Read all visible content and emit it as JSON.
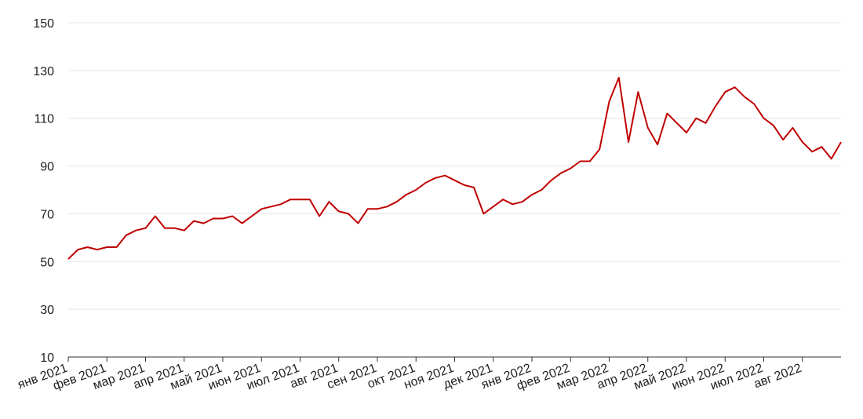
{
  "chart_data": {
    "type": "line",
    "categories": [
      "янв 2021",
      null,
      null,
      null,
      "фев 2021",
      null,
      null,
      null,
      "мар 2021",
      null,
      null,
      null,
      "апр 2021",
      null,
      null,
      null,
      "май 2021",
      null,
      null,
      null,
      "июн 2021",
      null,
      null,
      null,
      "июл 2021",
      null,
      null,
      null,
      "авг 2021",
      null,
      null,
      null,
      "сен 2021",
      null,
      null,
      null,
      "окт 2021",
      null,
      null,
      null,
      "ноя 2021",
      null,
      null,
      null,
      "дек 2021",
      null,
      null,
      null,
      "янв 2022",
      null,
      null,
      null,
      "фев 2022",
      null,
      null,
      null,
      "мар 2022",
      null,
      null,
      null,
      "апр 2022",
      null,
      null,
      null,
      "май 2022",
      null,
      null,
      null,
      "июн 2022",
      null,
      null,
      null,
      "июл 2022",
      null,
      null,
      null,
      "авг 2022",
      null,
      null,
      null,
      null
    ],
    "series": [
      {
        "color": "#c00000",
        "values": [
          51,
          55,
          56,
          55,
          56,
          56,
          61,
          63,
          64,
          69,
          64,
          64,
          63,
          67,
          66,
          68,
          68,
          69,
          66,
          69,
          72,
          73,
          74,
          76,
          76,
          76,
          69,
          75,
          71,
          70,
          66,
          72,
          72,
          73,
          75,
          78,
          80,
          83,
          85,
          86,
          84,
          82,
          81,
          70,
          73,
          76,
          74,
          75,
          78,
          80,
          84,
          87,
          89,
          92,
          92,
          97,
          117,
          127,
          100,
          121,
          106,
          99,
          112,
          108,
          104,
          110,
          108,
          115,
          121,
          123,
          119,
          116,
          110,
          107,
          101,
          106,
          100,
          96,
          98,
          93,
          100
        ]
      }
    ],
    "ylim": [
      10,
      150
    ],
    "yticks": [
      10,
      30,
      50,
      70,
      90,
      110,
      130,
      150
    ],
    "grid": true
  }
}
